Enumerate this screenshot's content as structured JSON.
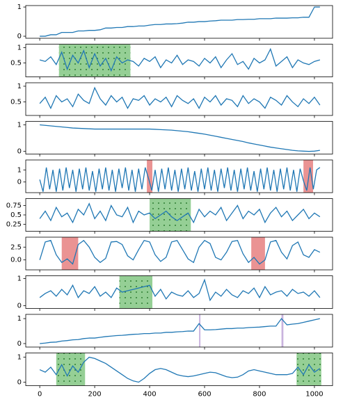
{
  "chart_data": [
    {
      "type": "line",
      "color": "#1f77b4",
      "xlim": [
        -51,
        1066
      ],
      "ylim": [
        -0.07,
        1.05
      ],
      "yticks": [
        0,
        1
      ],
      "x": [
        0,
        20,
        40,
        60,
        80,
        100,
        120,
        140,
        160,
        180,
        200,
        220,
        240,
        260,
        280,
        300,
        320,
        340,
        360,
        380,
        400,
        420,
        440,
        460,
        480,
        500,
        520,
        540,
        560,
        580,
        600,
        620,
        640,
        660,
        680,
        700,
        720,
        740,
        760,
        780,
        800,
        820,
        840,
        860,
        880,
        900,
        920,
        940,
        960,
        980,
        1000,
        1020
      ],
      "values": [
        0,
        0,
        0.05,
        0.05,
        0.13,
        0.13,
        0.13,
        0.18,
        0.18,
        0.2,
        0.2,
        0.22,
        0.28,
        0.28,
        0.3,
        0.3,
        0.33,
        0.33,
        0.35,
        0.35,
        0.38,
        0.4,
        0.4,
        0.42,
        0.42,
        0.43,
        0.45,
        0.48,
        0.48,
        0.5,
        0.5,
        0.52,
        0.53,
        0.55,
        0.55,
        0.55,
        0.57,
        0.57,
        0.58,
        0.58,
        0.6,
        0.6,
        0.6,
        0.62,
        0.62,
        0.62,
        0.63,
        0.63,
        0.65,
        0.65,
        1.0,
        1.0
      ],
      "spans": []
    },
    {
      "type": "line",
      "color": "#1f77b4",
      "xlim": [
        -51,
        1066
      ],
      "ylim": [
        0.05,
        1.11
      ],
      "yticks": [
        0.5,
        1.0
      ],
      "x": [
        0,
        20,
        40,
        60,
        80,
        100,
        120,
        140,
        160,
        180,
        200,
        220,
        240,
        260,
        280,
        300,
        320,
        340,
        360,
        380,
        400,
        420,
        440,
        460,
        480,
        500,
        520,
        540,
        560,
        580,
        600,
        620,
        640,
        660,
        680,
        700,
        720,
        740,
        760,
        780,
        800,
        820,
        840,
        860,
        880,
        900,
        920,
        940,
        960,
        980,
        1000,
        1020
      ],
      "values": [
        0.6,
        0.55,
        0.7,
        0.45,
        0.85,
        0.3,
        0.75,
        0.5,
        0.9,
        0.35,
        0.8,
        0.4,
        0.65,
        0.25,
        0.7,
        0.5,
        0.6,
        0.55,
        0.4,
        0.65,
        0.55,
        0.7,
        0.35,
        0.6,
        0.5,
        0.75,
        0.45,
        0.6,
        0.55,
        0.4,
        0.65,
        0.5,
        0.7,
        0.35,
        0.6,
        0.8,
        0.45,
        0.55,
        0.3,
        0.65,
        0.5,
        0.6,
        0.95,
        0.4,
        0.55,
        0.7,
        0.35,
        0.6,
        0.5,
        0.45,
        0.55,
        0.6
      ],
      "spans": [
        {
          "start": 70,
          "end": 330,
          "color": "#2ca02c",
          "dotted": true
        }
      ]
    },
    {
      "type": "line",
      "color": "#1f77b4",
      "xlim": [
        -51,
        1066
      ],
      "ylim": [
        0.07,
        1.11
      ],
      "yticks": [
        0.5,
        1.0
      ],
      "x": [
        0,
        20,
        40,
        60,
        80,
        100,
        120,
        140,
        160,
        180,
        200,
        220,
        240,
        260,
        280,
        300,
        320,
        340,
        360,
        380,
        400,
        420,
        440,
        460,
        480,
        500,
        520,
        540,
        560,
        580,
        600,
        620,
        640,
        660,
        680,
        700,
        720,
        740,
        760,
        780,
        800,
        820,
        840,
        860,
        880,
        900,
        920,
        940,
        960,
        980,
        1000,
        1020
      ],
      "values": [
        0.45,
        0.65,
        0.3,
        0.7,
        0.5,
        0.6,
        0.35,
        0.75,
        0.55,
        0.45,
        0.95,
        0.6,
        0.4,
        0.7,
        0.5,
        0.65,
        0.3,
        0.6,
        0.55,
        0.7,
        0.4,
        0.6,
        0.5,
        0.65,
        0.35,
        0.7,
        0.55,
        0.45,
        0.6,
        0.3,
        0.65,
        0.5,
        0.7,
        0.4,
        0.6,
        0.55,
        0.35,
        0.7,
        0.45,
        0.6,
        0.5,
        0.3,
        0.65,
        0.55,
        0.4,
        0.7,
        0.5,
        0.35,
        0.6,
        0.45,
        0.65,
        0.4
      ],
      "spans": []
    },
    {
      "type": "line",
      "color": "#1f77b4",
      "xlim": [
        -51,
        1066
      ],
      "ylim": [
        -0.1,
        1.13
      ],
      "yticks": [
        0,
        1
      ],
      "x": [
        0,
        20,
        40,
        60,
        80,
        100,
        120,
        140,
        160,
        180,
        200,
        220,
        240,
        260,
        280,
        300,
        320,
        340,
        360,
        380,
        400,
        420,
        440,
        460,
        480,
        500,
        520,
        540,
        560,
        580,
        600,
        620,
        640,
        660,
        680,
        700,
        720,
        740,
        760,
        780,
        800,
        820,
        840,
        860,
        880,
        900,
        920,
        940,
        960,
        980,
        1000,
        1020
      ],
      "values": [
        1.0,
        0.98,
        0.96,
        0.94,
        0.92,
        0.9,
        0.88,
        0.87,
        0.86,
        0.85,
        0.84,
        0.84,
        0.84,
        0.84,
        0.84,
        0.84,
        0.84,
        0.84,
        0.84,
        0.84,
        0.84,
        0.83,
        0.82,
        0.81,
        0.8,
        0.78,
        0.76,
        0.74,
        0.71,
        0.68,
        0.65,
        0.61,
        0.57,
        0.53,
        0.49,
        0.45,
        0.41,
        0.37,
        0.32,
        0.28,
        0.24,
        0.2,
        0.16,
        0.13,
        0.1,
        0.07,
        0.04,
        0.02,
        0.01,
        0.0,
        0.01,
        0.04
      ],
      "spans": []
    },
    {
      "type": "line",
      "color": "#1f77b4",
      "xlim": [
        -51,
        1066
      ],
      "ylim": [
        -0.88,
        1.82
      ],
      "yticks": [
        0,
        1
      ],
      "x": [
        0,
        12,
        24,
        36,
        48,
        60,
        72,
        84,
        96,
        108,
        120,
        132,
        144,
        156,
        168,
        180,
        192,
        204,
        216,
        228,
        240,
        252,
        264,
        276,
        288,
        300,
        312,
        324,
        336,
        348,
        360,
        372,
        384,
        396,
        408,
        420,
        432,
        444,
        456,
        468,
        480,
        492,
        504,
        516,
        528,
        540,
        552,
        564,
        576,
        588,
        600,
        612,
        624,
        636,
        648,
        660,
        672,
        684,
        696,
        708,
        720,
        732,
        744,
        756,
        768,
        780,
        792,
        804,
        816,
        828,
        840,
        852,
        864,
        876,
        888,
        900,
        912,
        924,
        936,
        948,
        960,
        972,
        984,
        996,
        1008,
        1020
      ],
      "values": [
        0.2,
        -0.8,
        1.2,
        -0.6,
        1.0,
        -0.8,
        1.1,
        -0.7,
        1.2,
        -0.5,
        1.0,
        -0.8,
        1.1,
        -0.6,
        1.2,
        -0.7,
        0.9,
        -0.8,
        1.1,
        -0.6,
        1.2,
        -0.7,
        1.0,
        -0.8,
        1.1,
        -0.5,
        1.2,
        -0.7,
        1.0,
        -0.8,
        1.1,
        -0.6,
        1.2,
        0.3,
        -0.7,
        1.0,
        -0.8,
        1.1,
        -0.6,
        1.2,
        -0.7,
        1.0,
        -0.8,
        1.1,
        -0.6,
        1.2,
        -0.7,
        0.9,
        -0.8,
        1.1,
        -0.6,
        1.2,
        -0.7,
        1.0,
        -0.8,
        1.1,
        -0.5,
        1.2,
        -0.7,
        1.0,
        -0.8,
        1.1,
        -0.6,
        1.2,
        -0.7,
        0.9,
        -0.8,
        1.1,
        -0.6,
        1.2,
        -0.7,
        1.0,
        -0.8,
        1.1,
        -0.6,
        1.2,
        -0.7,
        1.0,
        -0.8,
        1.1,
        0.1,
        -0.7,
        1.2,
        -0.6,
        1.0,
        1.2
      ],
      "spans": [
        {
          "start": 390,
          "end": 410,
          "color": "#d62728",
          "dotted": false
        },
        {
          "start": 960,
          "end": 995,
          "color": "#d62728",
          "dotted": false
        }
      ]
    },
    {
      "type": "line",
      "color": "#1f77b4",
      "xlim": [
        -51,
        1066
      ],
      "ylim": [
        0.065,
        0.935
      ],
      "yticks": [
        0.25,
        0.5,
        0.75
      ],
      "x": [
        0,
        20,
        40,
        60,
        80,
        100,
        120,
        140,
        160,
        180,
        200,
        220,
        240,
        260,
        280,
        300,
        320,
        340,
        360,
        380,
        400,
        420,
        440,
        460,
        480,
        500,
        520,
        540,
        560,
        580,
        600,
        620,
        640,
        660,
        680,
        700,
        720,
        740,
        760,
        780,
        800,
        820,
        840,
        860,
        880,
        900,
        920,
        940,
        960,
        980,
        1000,
        1020
      ],
      "values": [
        0.4,
        0.6,
        0.35,
        0.7,
        0.45,
        0.55,
        0.3,
        0.65,
        0.5,
        0.8,
        0.4,
        0.6,
        0.35,
        0.75,
        0.5,
        0.45,
        0.7,
        0.3,
        0.6,
        0.5,
        0.55,
        0.4,
        0.5,
        0.6,
        0.45,
        0.35,
        0.45,
        0.55,
        0.3,
        0.65,
        0.45,
        0.6,
        0.5,
        0.7,
        0.35,
        0.55,
        0.75,
        0.4,
        0.6,
        0.5,
        0.65,
        0.3,
        0.55,
        0.7,
        0.45,
        0.6,
        0.35,
        0.5,
        0.65,
        0.4,
        0.55,
        0.45
      ],
      "spans": [
        {
          "start": 400,
          "end": 550,
          "color": "#2ca02c",
          "dotted": true
        }
      ]
    },
    {
      "type": "line",
      "color": "#1f77b4",
      "xlim": [
        -51,
        1066
      ],
      "ylim": [
        -1.94,
        4.44
      ],
      "yticks": [
        {
          "value": 0,
          "label": "0.0"
        },
        2.5
      ],
      "x": [
        0,
        20,
        40,
        60,
        80,
        100,
        120,
        140,
        160,
        180,
        200,
        220,
        240,
        260,
        280,
        300,
        320,
        340,
        360,
        380,
        400,
        420,
        440,
        460,
        480,
        500,
        520,
        540,
        560,
        580,
        600,
        620,
        640,
        660,
        680,
        700,
        720,
        740,
        760,
        780,
        800,
        820,
        840,
        860,
        880,
        900,
        920,
        940,
        960,
        980,
        1000,
        1020
      ],
      "values": [
        0,
        3.5,
        3.8,
        1.0,
        -0.5,
        0.2,
        -0.8,
        3.0,
        3.8,
        2.5,
        0.5,
        -0.5,
        0.3,
        3.5,
        3.6,
        3.0,
        0.8,
        0,
        2.0,
        3.8,
        3.5,
        1.0,
        -0.3,
        0.5,
        3.5,
        3.8,
        2.0,
        0.2,
        -0.5,
        2.5,
        3.8,
        3.2,
        0.5,
        0.0,
        1.5,
        3.6,
        3.8,
        1.2,
        -0.5,
        0.5,
        -0.8,
        0.0,
        3.5,
        3.8,
        1.5,
        0.2,
        2.8,
        3.5,
        1.0,
        0.5,
        2.0,
        1.5
      ],
      "spans": [
        {
          "start": 80,
          "end": 140,
          "color": "#d62728",
          "dotted": false
        },
        {
          "start": 770,
          "end": 820,
          "color": "#d62728",
          "dotted": false
        }
      ]
    },
    {
      "type": "line",
      "color": "#1f77b4",
      "xlim": [
        -51,
        1066
      ],
      "ylim": [
        -0.1,
        1.1
      ],
      "yticks": [
        0,
        1
      ],
      "x": [
        0,
        20,
        40,
        60,
        80,
        100,
        120,
        140,
        160,
        180,
        200,
        220,
        240,
        260,
        280,
        300,
        320,
        340,
        360,
        380,
        400,
        420,
        440,
        460,
        480,
        500,
        520,
        540,
        560,
        580,
        600,
        620,
        640,
        660,
        680,
        700,
        720,
        740,
        760,
        780,
        800,
        820,
        840,
        860,
        880,
        900,
        920,
        940,
        960,
        980,
        1000,
        1020
      ],
      "values": [
        0.3,
        0.45,
        0.55,
        0.35,
        0.6,
        0.4,
        0.75,
        0.3,
        0.55,
        0.45,
        0.7,
        0.35,
        0.5,
        0.3,
        0.65,
        0.5,
        0.55,
        0.6,
        0.65,
        0.7,
        0.75,
        0.35,
        0.6,
        0.25,
        0.5,
        0.4,
        0.35,
        0.55,
        0.3,
        0.45,
        0.95,
        0.2,
        0.5,
        0.35,
        0.6,
        0.4,
        0.3,
        0.55,
        0.45,
        0.65,
        0.3,
        0.7,
        0.4,
        0.5,
        0.55,
        0.35,
        0.6,
        0.45,
        0.5,
        0.35,
        0.55,
        0.3
      ],
      "spans": [
        {
          "start": 290,
          "end": 410,
          "color": "#2ca02c",
          "dotted": true
        }
      ]
    },
    {
      "type": "line",
      "color": "#1f77b4",
      "xlim": [
        -51,
        1066
      ],
      "ylim": [
        -0.14,
        1.17
      ],
      "yticks": [
        0,
        1
      ],
      "x": [
        0,
        20,
        40,
        60,
        80,
        100,
        120,
        140,
        160,
        180,
        200,
        220,
        240,
        260,
        280,
        300,
        320,
        340,
        360,
        380,
        400,
        420,
        440,
        460,
        480,
        500,
        520,
        540,
        560,
        580,
        600,
        620,
        640,
        660,
        680,
        700,
        720,
        740,
        760,
        780,
        800,
        820,
        840,
        860,
        880,
        900,
        920,
        940,
        960,
        980,
        1000,
        1020
      ],
      "values": [
        0.0,
        0.02,
        0.05,
        0.06,
        0.1,
        0.12,
        0.15,
        0.16,
        0.2,
        0.22,
        0.22,
        0.25,
        0.28,
        0.3,
        0.32,
        0.33,
        0.35,
        0.37,
        0.38,
        0.4,
        0.4,
        0.42,
        0.42,
        0.45,
        0.45,
        0.47,
        0.48,
        0.5,
        0.5,
        0.8,
        0.55,
        0.55,
        0.56,
        0.58,
        0.6,
        0.6,
        0.62,
        0.62,
        0.64,
        0.65,
        0.66,
        0.68,
        0.7,
        0.7,
        1.0,
        0.75,
        0.78,
        0.8,
        0.85,
        0.9,
        0.95,
        1.0
      ],
      "spans": [
        {
          "start": 580,
          "end": 585,
          "color": "#9467bd",
          "dotted": false
        },
        {
          "start": 880,
          "end": 887,
          "color": "#9467bd",
          "dotted": false
        }
      ]
    },
    {
      "type": "line",
      "color": "#1f77b4",
      "xlim": [
        -51,
        1066
      ],
      "ylim": [
        -0.14,
        1.17
      ],
      "yticks": [
        0,
        1
      ],
      "xticks": [
        0,
        200,
        400,
        600,
        800,
        1000
      ],
      "x": [
        0,
        20,
        40,
        60,
        80,
        100,
        120,
        140,
        160,
        180,
        200,
        220,
        240,
        260,
        280,
        300,
        320,
        340,
        360,
        380,
        400,
        420,
        440,
        460,
        480,
        500,
        520,
        540,
        560,
        580,
        600,
        620,
        640,
        660,
        680,
        700,
        720,
        740,
        760,
        780,
        800,
        820,
        840,
        860,
        880,
        900,
        920,
        940,
        960,
        980,
        1000,
        1020
      ],
      "values": [
        0.5,
        0.4,
        0.6,
        0.3,
        0.7,
        0.25,
        0.65,
        0.4,
        0.8,
        1.0,
        0.95,
        0.85,
        0.75,
        0.6,
        0.45,
        0.3,
        0.15,
        0.05,
        0.0,
        0.15,
        0.35,
        0.5,
        0.55,
        0.5,
        0.4,
        0.3,
        0.25,
        0.22,
        0.25,
        0.3,
        0.35,
        0.4,
        0.38,
        0.3,
        0.22,
        0.18,
        0.2,
        0.3,
        0.45,
        0.5,
        0.45,
        0.4,
        0.35,
        0.3,
        0.3,
        0.3,
        0.35,
        0.6,
        0.3,
        0.7,
        0.4,
        0.55
      ],
      "spans": [
        {
          "start": 60,
          "end": 165,
          "color": "#2ca02c",
          "dotted": true
        },
        {
          "start": 935,
          "end": 1025,
          "color": "#2ca02c",
          "dotted": true
        }
      ]
    }
  ]
}
